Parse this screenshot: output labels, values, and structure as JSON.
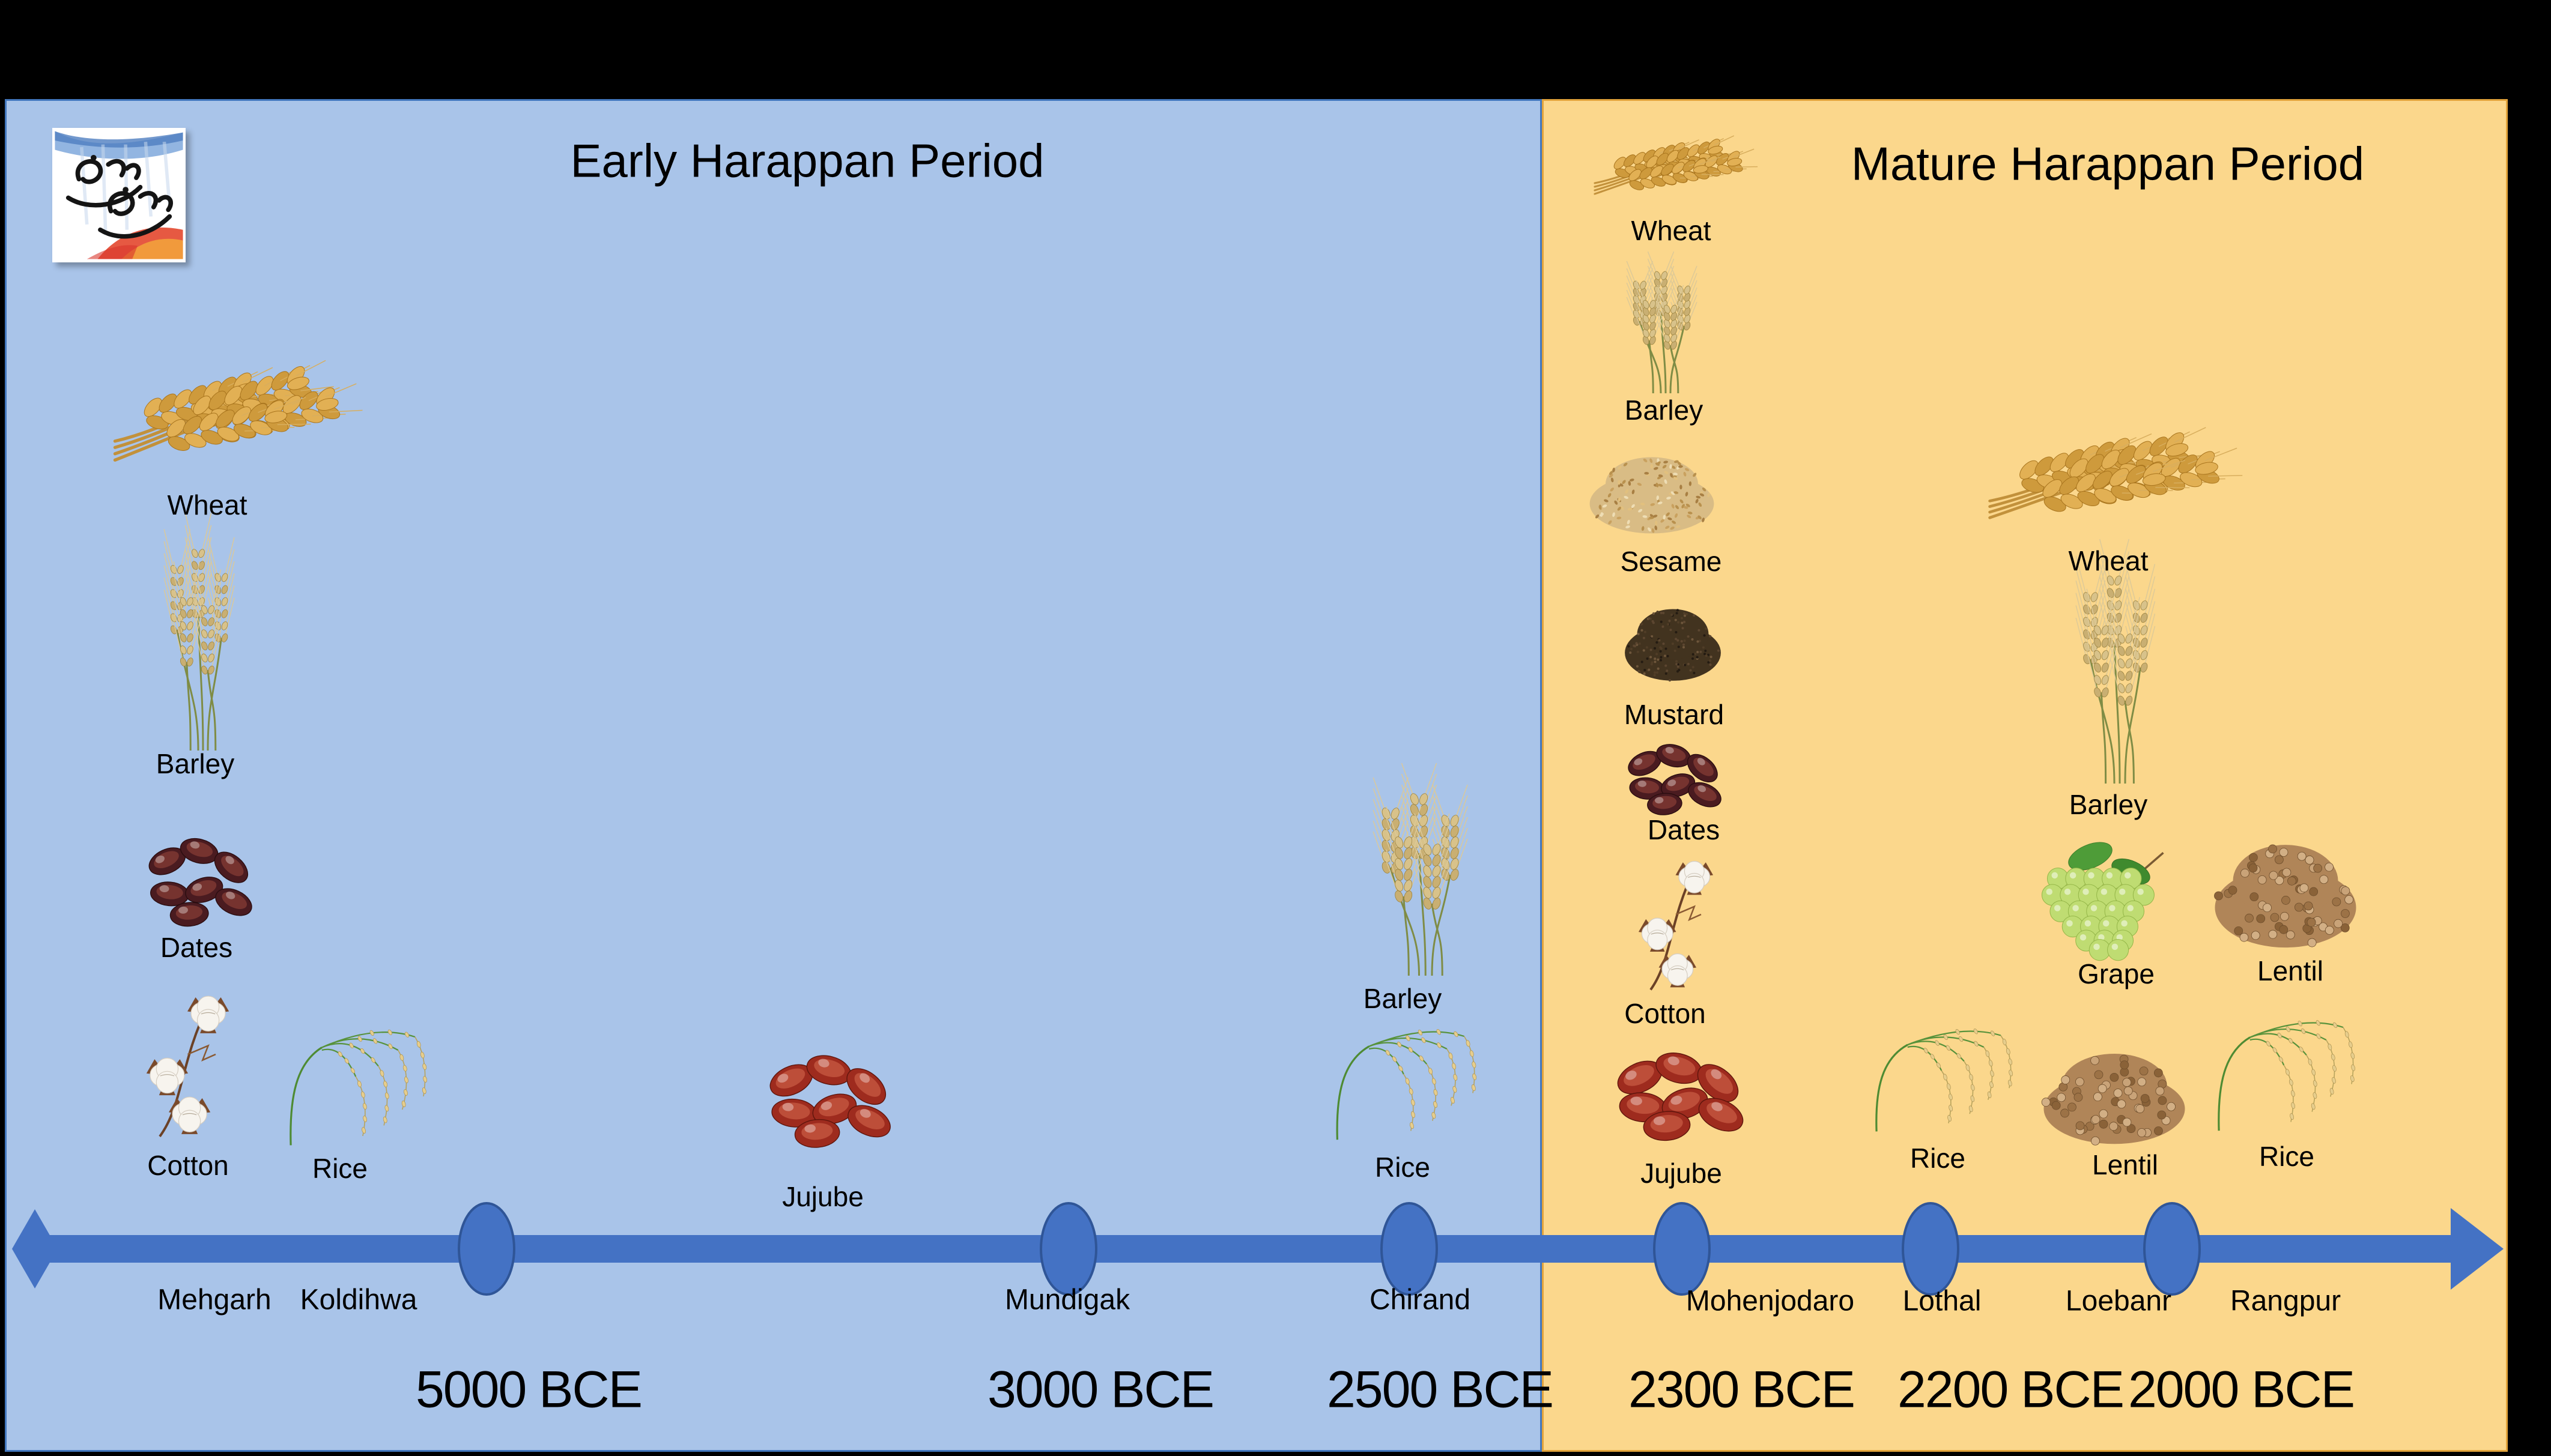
{
  "titles": {
    "early": "Early Harappan Period",
    "mature": "Mature Harappan Period"
  },
  "logo": {
    "description": "Tamil calligraphy watercolor logo"
  },
  "colors": {
    "early_bg": "#A9C4E9",
    "early_border": "#4277BE",
    "mature_bg": "#FBD78C",
    "mature_border": "#E2A33B",
    "timeline_bar": "#4472C4",
    "node_fill": "#4472C4",
    "node_border": "#2F5597",
    "frame": "#000000",
    "text": "#000000"
  },
  "timeline": {
    "sites": [
      {
        "name": "Mehgarh"
      },
      {
        "name": "Koldihwa"
      },
      {
        "name": "Mundigak"
      },
      {
        "name": "Chirand"
      },
      {
        "name": "Mohenjodaro"
      },
      {
        "name": "Lothal"
      },
      {
        "name": "Loebanr"
      },
      {
        "name": "Rangpur"
      }
    ],
    "dates": [
      {
        "label": "5000 BCE"
      },
      {
        "label": "3000 BCE"
      },
      {
        "label": "2500 BCE"
      },
      {
        "label": "2300 BCE"
      },
      {
        "label": "2200 BCE"
      },
      {
        "label": "2000 BCE"
      }
    ]
  },
  "crop_items": [
    {
      "label": "Wheat",
      "icon": "wheat",
      "period": "early",
      "site": "Mehgarh"
    },
    {
      "label": "Barley",
      "icon": "barley",
      "period": "early",
      "site": "Mehgarh"
    },
    {
      "label": "Dates",
      "icon": "dates",
      "period": "early",
      "site": "Mehgarh"
    },
    {
      "label": "Cotton",
      "icon": "cotton",
      "period": "early",
      "site": "Mehgarh"
    },
    {
      "label": "Rice",
      "icon": "rice",
      "period": "early",
      "site": "Koldihwa"
    },
    {
      "label": "Jujube",
      "icon": "jujube",
      "period": "early",
      "site": "Mundigak"
    },
    {
      "label": "Barley",
      "icon": "barley",
      "period": "early",
      "site": "Chirand"
    },
    {
      "label": "Rice",
      "icon": "rice",
      "period": "early",
      "site": "Chirand"
    },
    {
      "label": "Wheat",
      "icon": "wheat",
      "period": "mature",
      "site": "Mohenjodaro"
    },
    {
      "label": "Barley",
      "icon": "barley",
      "period": "mature",
      "site": "Mohenjodaro"
    },
    {
      "label": "Sesame",
      "icon": "sesame",
      "period": "mature",
      "site": "Mohenjodaro"
    },
    {
      "label": "Mustard",
      "icon": "mustard",
      "period": "mature",
      "site": "Mohenjodaro"
    },
    {
      "label": "Dates",
      "icon": "dates",
      "period": "mature",
      "site": "Mohenjodaro"
    },
    {
      "label": "Cotton",
      "icon": "cotton",
      "period": "mature",
      "site": "Mohenjodaro"
    },
    {
      "label": "Jujube",
      "icon": "jujube",
      "period": "mature",
      "site": "Mohenjodaro"
    },
    {
      "label": "Wheat",
      "icon": "wheat",
      "period": "mature",
      "site": "Loebanr"
    },
    {
      "label": "Barley",
      "icon": "barley",
      "period": "mature",
      "site": "Loebanr"
    },
    {
      "label": "Grape",
      "icon": "grape",
      "period": "mature",
      "site": "Loebanr"
    },
    {
      "label": "Lentil",
      "icon": "lentil",
      "period": "mature",
      "site": "Rangpur"
    },
    {
      "label": "Rice",
      "icon": "rice",
      "period": "mature",
      "site": "Lothal"
    },
    {
      "label": "Lentil",
      "icon": "lentil",
      "period": "mature",
      "site": "Loebanr"
    },
    {
      "label": "Rice",
      "icon": "rice",
      "period": "mature",
      "site": "Rangpur"
    }
  ]
}
